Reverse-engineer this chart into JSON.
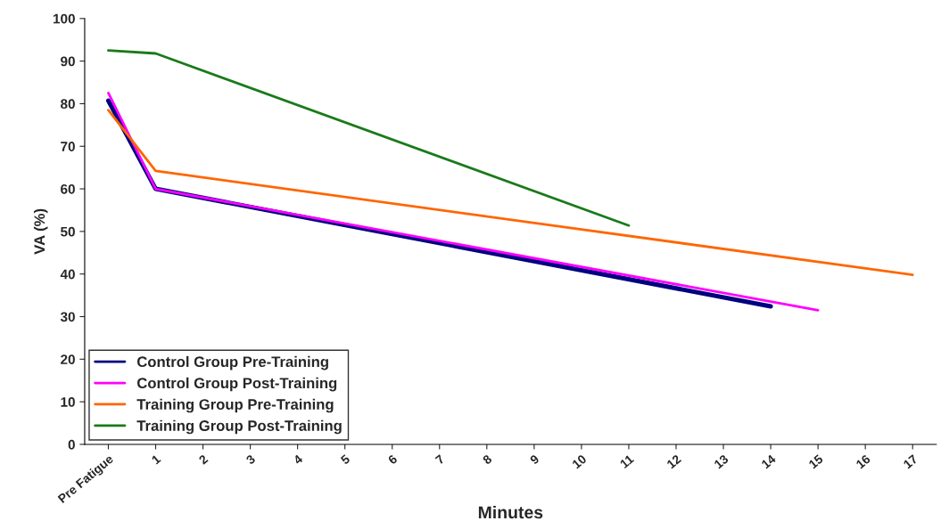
{
  "chart_data": {
    "type": "line",
    "xlabel": "Minutes",
    "ylabel": "VA (%)",
    "xlim": [
      -0.5,
      17.5
    ],
    "xticks": [
      {
        "value": 0,
        "label": "Pre Fatigue"
      },
      1,
      2,
      3,
      4,
      5,
      6,
      7,
      8,
      9,
      10,
      11,
      12,
      13,
      14,
      15,
      16,
      17
    ],
    "ylim": [
      0,
      100
    ],
    "yticks": [
      0,
      10,
      20,
      30,
      40,
      50,
      60,
      70,
      80,
      90,
      100
    ],
    "grid": false,
    "legend": "bottom left",
    "marker": "none",
    "line_style": "solid",
    "series": [
      {
        "name": "Control Group Pre-Training",
        "color": "#000080",
        "x": [
          0,
          1,
          14
        ],
        "values": [
          80.7,
          60,
          32.4
        ]
      },
      {
        "name": "Control Group Post-Training",
        "color": "#ff00ff",
        "x": [
          0,
          1,
          15
        ],
        "values": [
          82.5,
          60,
          31.5
        ]
      },
      {
        "name": "Training Group Pre-Training",
        "color": "#ff6600",
        "x": [
          0,
          1,
          17
        ],
        "values": [
          78.5,
          64.2,
          39.8
        ]
      },
      {
        "name": "Training Group Post-Training",
        "color": "#1a7a1a",
        "x": [
          0,
          1,
          11
        ],
        "values": [
          92.5,
          91.8,
          51.4
        ]
      }
    ]
  }
}
